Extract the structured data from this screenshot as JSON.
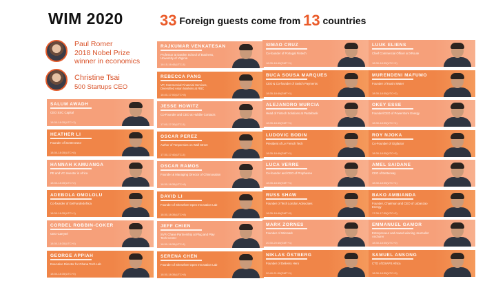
{
  "header": {
    "title": "WIM 2020",
    "headline_num1": "33",
    "headline_mid": " Foreign guests come from ",
    "headline_num2": "13",
    "headline_end": " countries"
  },
  "speakers": [
    {
      "line1": "Paul Romer",
      "line2": "2018 Nobel Prize",
      "line3": "winner in economics"
    },
    {
      "line1": "Christine Tsai",
      "line2": "500 Startups CEO",
      "line3": ""
    }
  ],
  "colors": {
    "accent": "#ea5a28",
    "card_light": "#f6a07a",
    "card_dark": "#f08548"
  },
  "columns": [
    {
      "cards": [
        {
          "name": "SALUM AWADH",
          "role": "CEO SSC Capital",
          "time": "18:30-18:35(UTC+3)"
        },
        {
          "name": "HEATHER LI",
          "role": "Founder of iGetInvestor",
          "time": "18:30-18:35(UTC+8)"
        },
        {
          "name": "HANNAH KAMUANGA",
          "role": "PE and VC Investor in Africa",
          "time": "18:30-18:35(UTC+2)"
        },
        {
          "name": "ADEBOLA OMOLOLU",
          "role": "Co-founder of GetFundedAfrica",
          "time": "18:30-18:35(UTC+1)"
        },
        {
          "name": "CORDEL ROBBIN-COKER",
          "role": "CEO Carrytel",
          "time": "18:30-18:35(UTC+0)"
        },
        {
          "name": "GEORGE APPIAH",
          "role": "Executive Director for Ghana Tech Lab",
          "time": "18:30-18:35(UTC+0)"
        }
      ]
    },
    {
      "cards": [
        {
          "name": "RAJKUMAR VENKATESAN",
          "role": "Professor at Darden School of Business, University of Virginia",
          "time": "16:15-16:45(UTC-5)"
        },
        {
          "name": "REBECCA PANG",
          "role": "VP, Commercial Financial Services, Diversified Asian Markets at RBC",
          "time": "16:40-17:00(UTC+8)"
        },
        {
          "name": "JESSE HOWITZ",
          "role": "Co-Founder and CEO at Hubble Contacts",
          "time": "17:00-17:30(UTC-5)"
        },
        {
          "name": "OSCAR PEREZ",
          "role": "Author of Tenpennies on Wall Street",
          "time": "17:30-17:40(UTC-5)"
        },
        {
          "name": "OSCAR RAMOS",
          "role": "Founder & Managing Director of Chinnovation",
          "time": "18:30-18:35(UTC+8)"
        },
        {
          "name": "DAVID LI",
          "role": "Founder of Shenzhen Open Innovation Lab",
          "time": "18:30-18:35(UTC+8)"
        },
        {
          "name": "JEFF CHIEN",
          "role": "SVP, Chase Partnership at Plug and Play Tech Center",
          "time": "18:30-18:35(UTC-8)"
        },
        {
          "name": "SERENA CHEN",
          "role": "Founder of Shenzhen Open Innovation Lab",
          "time": "18:30-18:35(UTC+8)"
        }
      ]
    },
    {
      "cards": [
        {
          "name": "SIMAO CRUZ",
          "role": "Co-founder of Portugal Fintech",
          "time": "18:35-18:40(GMT+1)"
        },
        {
          "name": "BUCA SOUSA MARQUES",
          "role": "CEO & Co-founder of Switch Payments",
          "time": "18:35-18:40(GMT+1)"
        },
        {
          "name": "ALEJANDRO MURCIA",
          "role": "Head of Fintech Solutions at Pastebank",
          "time": "18:35-18:40(GMT+1)"
        },
        {
          "name": "LUDOVIC BODIN",
          "role": "President of Le French Tech",
          "time": "18:35-18:40(GMT+1)"
        },
        {
          "name": "LUCA VERRE",
          "role": "Co-founder and CEO of Prophesee",
          "time": "18:35-18:40(GMT+1)"
        },
        {
          "name": "RUSS SHAW",
          "role": "Founder of Tech London Advocates",
          "time": "18:35-18:40(GMT+0)"
        },
        {
          "name": "MARK ZORNES",
          "role": "Founder of Winmark",
          "time": "20:30-20:40(GMT+1)"
        },
        {
          "name": "NIKLAS ÖSTBERG",
          "role": "Founder of Delivery Hero",
          "time": "20:40-21:00(GMT+1)"
        }
      ]
    },
    {
      "cards": [
        {
          "name": "LUUK ELIENS",
          "role": "Chief Commercial Officer at XRoute",
          "time": "18:30-18:35(UTC+2)"
        },
        {
          "name": "MURENDENI MAFUMO",
          "role": "Founder of Kusini Water",
          "time": "18:30-18:35(UTC+2)"
        },
        {
          "name": "OKEY ESSE",
          "role": "Founder/CEO of Powerstore Energy",
          "time": "18:30-18:35(UTC+1)"
        },
        {
          "name": "ROY NJOKA",
          "role": "Co-Founder of Gigfactor",
          "time": "18:30-18:35(UTC+3)"
        },
        {
          "name": "AMEL SAIDANE",
          "role": "CEO of Betterway",
          "time": "18:30-18:35(UTC+1)"
        },
        {
          "name": "BAKO AMBIANDA",
          "role": "Founder, Chairman and CEO of Lubanzao Energy",
          "time": "17:30-17:35(UTC+2)"
        },
        {
          "name": "EMMANUEL GAMOR",
          "role": "Entrepreneur and Award-winning Journalist Anchorer",
          "time": "18:30-18:35(UTC+0)"
        },
        {
          "name": "SAMUEL ANSONG",
          "role": "CTO of DSAPS Africa",
          "time": "18:30-18:35(UTC+0)"
        }
      ]
    }
  ]
}
